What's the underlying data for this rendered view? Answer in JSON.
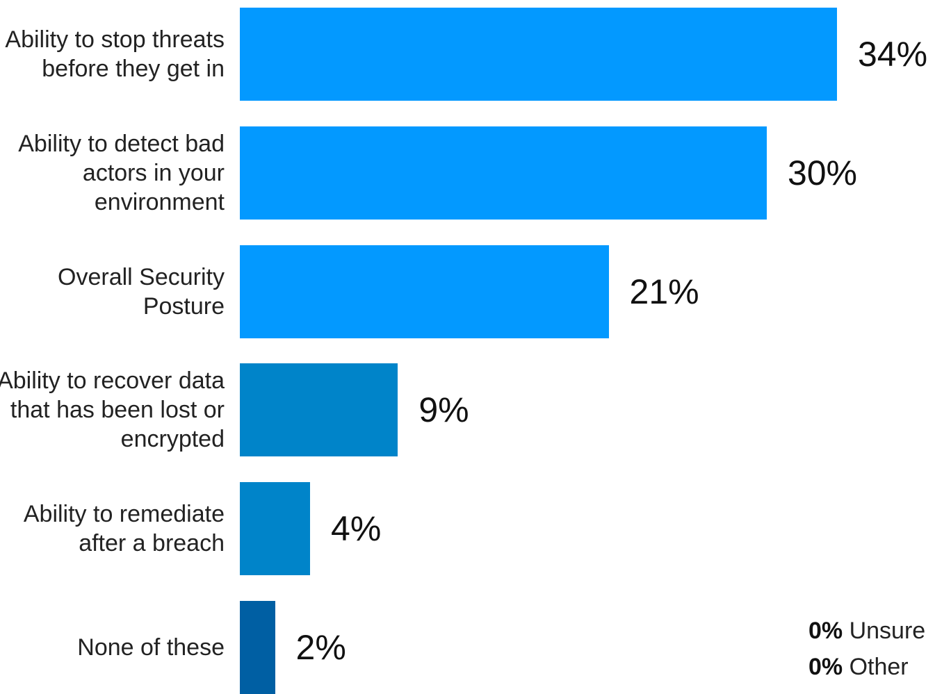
{
  "chart_data": {
    "type": "bar",
    "orientation": "horizontal",
    "categories": [
      "Ability to stop threats before they get in",
      "Ability to detect bad actors in your environment",
      "Overall Security Posture",
      "Ability to recover data that has been lost or encrypted",
      "Ability to remediate after a breach",
      "None of these"
    ],
    "values": [
      34,
      30,
      21,
      9,
      4,
      2
    ],
    "value_labels": [
      "34%",
      "30%",
      "21%",
      "9%",
      "4%",
      "2%"
    ],
    "xlim": [
      0,
      34
    ],
    "bar_colors": [
      "#0399FF",
      "#0399FF",
      "#0399FF",
      "#0084C9",
      "#0084C9",
      "#005FA3"
    ],
    "grid": false,
    "legend": null
  },
  "footnotes": [
    {
      "value": "0%",
      "label": "Unsure"
    },
    {
      "value": "0%",
      "label": "Other"
    }
  ]
}
